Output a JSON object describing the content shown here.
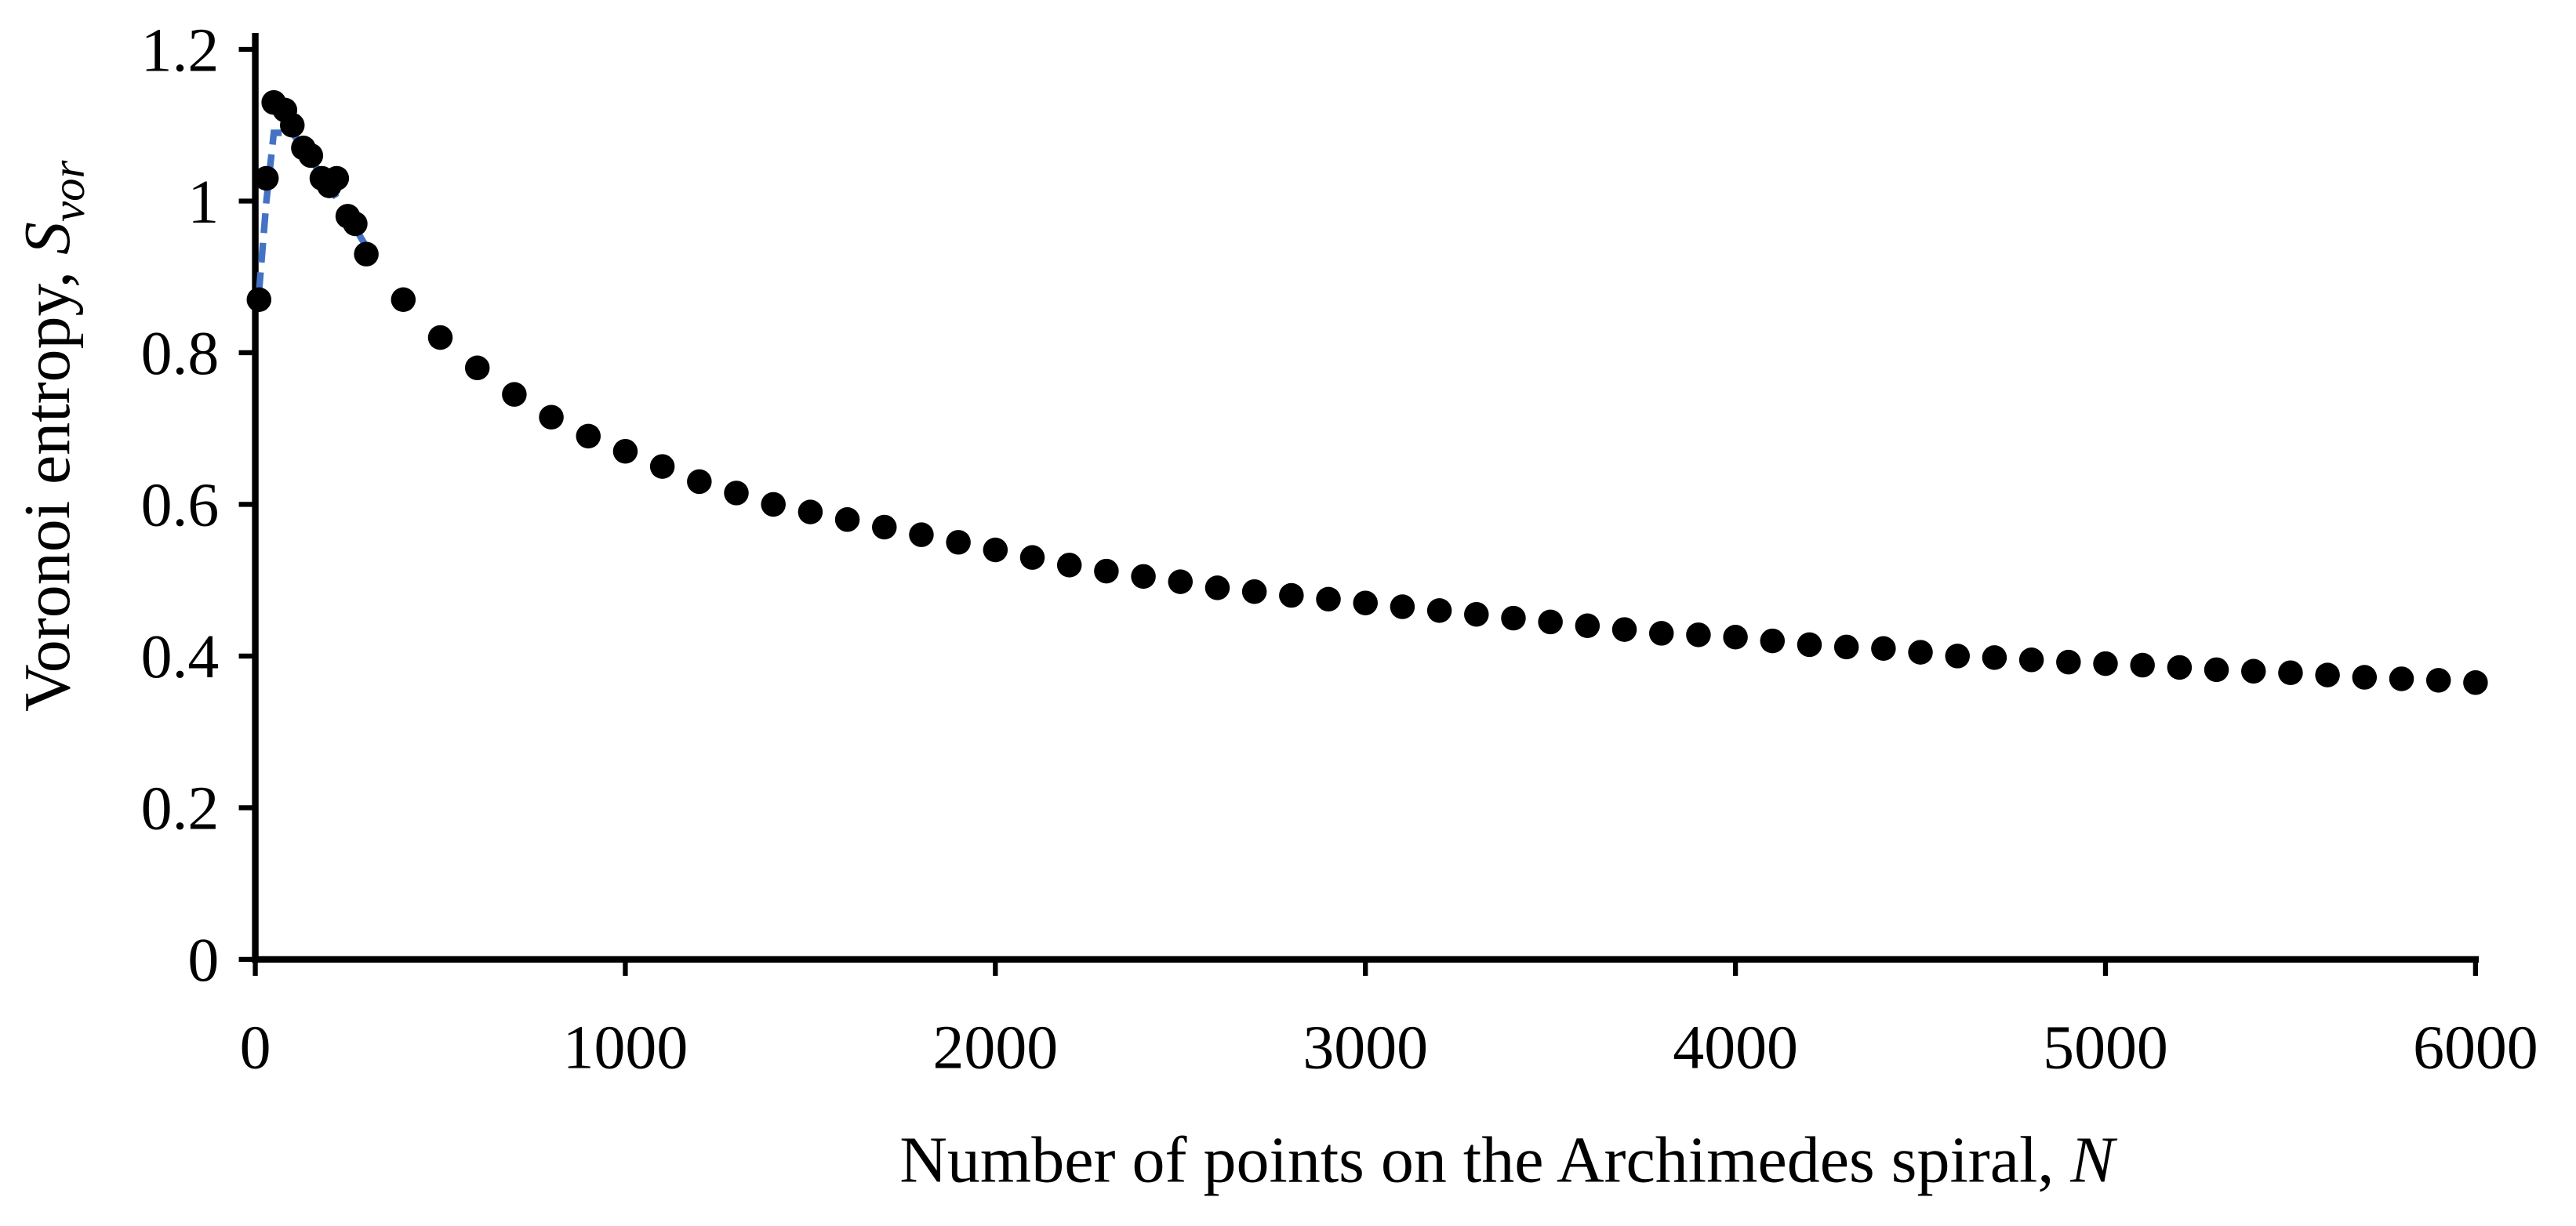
{
  "chart_data": {
    "type": "scatter",
    "xlabel": "Number of points on the Archimedes spiral,",
    "xlabel_symbol": "N",
    "ylabel": "Voronoi entropy,",
    "ylabel_symbol": "S",
    "ylabel_subscript": "vor",
    "xlim": [
      0,
      6000
    ],
    "ylim": [
      0,
      1.2
    ],
    "xticks": [
      0,
      1000,
      2000,
      3000,
      4000,
      5000,
      6000
    ],
    "yticks": [
      0,
      0.2,
      0.4,
      0.6,
      0.8,
      1,
      1.2
    ],
    "grid": false,
    "series": [
      {
        "type": "line",
        "color": "#4472c4",
        "dashed": true,
        "x": [
          10,
          30,
          50,
          100,
          200,
          300
        ],
        "values": [
          0.88,
          1.0,
          1.09,
          1.09,
          1.02,
          0.94
        ]
      },
      {
        "type": "scatter",
        "color": "#000000",
        "x": [
          10,
          30,
          50,
          80,
          100,
          130,
          150,
          180,
          200,
          220,
          250,
          270,
          300,
          400,
          500,
          600,
          700,
          800,
          900,
          1000,
          1100,
          1200,
          1300,
          1400,
          1500,
          1600,
          1700,
          1800,
          1900,
          2000,
          2100,
          2200,
          2300,
          2400,
          2500,
          2600,
          2700,
          2800,
          2900,
          3000,
          3100,
          3200,
          3300,
          3400,
          3500,
          3600,
          3700,
          3800,
          3900,
          4000,
          4100,
          4200,
          4300,
          4400,
          4500,
          4600,
          4700,
          4800,
          4900,
          5000,
          5100,
          5200,
          5300,
          5400,
          5500,
          5600,
          5700,
          5800,
          5900,
          6000
        ],
        "values": [
          0.87,
          1.03,
          1.13,
          1.12,
          1.1,
          1.07,
          1.06,
          1.03,
          1.02,
          1.03,
          0.98,
          0.97,
          0.93,
          0.87,
          0.82,
          0.78,
          0.745,
          0.715,
          0.69,
          0.67,
          0.65,
          0.63,
          0.615,
          0.6,
          0.59,
          0.58,
          0.57,
          0.56,
          0.55,
          0.54,
          0.53,
          0.52,
          0.512,
          0.505,
          0.498,
          0.49,
          0.485,
          0.48,
          0.475,
          0.47,
          0.465,
          0.46,
          0.455,
          0.45,
          0.445,
          0.44,
          0.435,
          0.43,
          0.428,
          0.425,
          0.42,
          0.415,
          0.412,
          0.41,
          0.405,
          0.4,
          0.398,
          0.395,
          0.392,
          0.39,
          0.388,
          0.385,
          0.382,
          0.38,
          0.378,
          0.375,
          0.372,
          0.37,
          0.368,
          0.365
        ]
      }
    ]
  }
}
